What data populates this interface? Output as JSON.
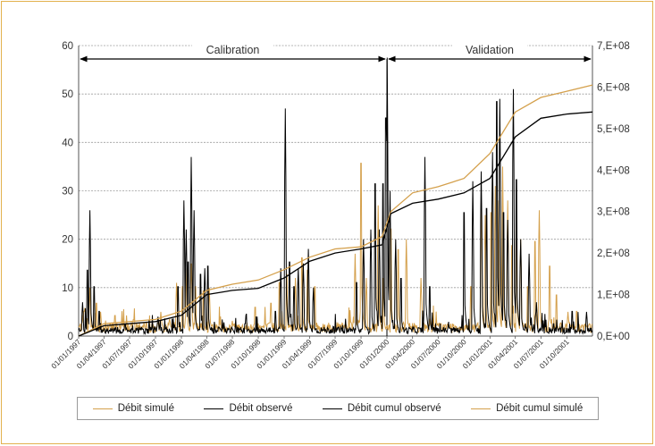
{
  "chart_data": {
    "type": "line",
    "title": "",
    "xlabel": "",
    "ylabel": "",
    "ylim_left": [
      0,
      60
    ],
    "ylim_right": [
      0,
      700000000
    ],
    "yticks_left": [
      "0",
      "10",
      "20",
      "30",
      "40",
      "50",
      "60"
    ],
    "yticks_right": [
      "0,E+00",
      "1,E+08",
      "2,E+08",
      "3,E+08",
      "4,E+08",
      "5,E+08",
      "6,E+08",
      "7,E+08"
    ],
    "x_tick_labels": [
      "01/01/1997",
      "01/04/1997",
      "01/07/1997",
      "01/10/1997",
      "01/01/1998",
      "01/04/1998",
      "01/07/1998",
      "01/10/1998",
      "01/01/1999",
      "01/04/1999",
      "01/07/1999",
      "01/10/1999",
      "01/01/2000",
      "01/04/2000",
      "01/07/2000",
      "01/10/2000",
      "01/01/2001",
      "01/04/2001",
      "01/07/2001",
      "01/10/2001"
    ],
    "x_range": [
      "1997-01-01",
      "2001-12-31"
    ],
    "grid": "horizontal",
    "legend_position": "bottom",
    "periods": [
      {
        "label": "Calibration",
        "start": "1997-01-01",
        "end": "2000-01-01"
      },
      {
        "label": "Validation",
        "start": "2000-01-01",
        "end": "2001-12-31"
      }
    ],
    "series": [
      {
        "name": "Débit simulé",
        "axis": "left",
        "color": "#d4a04c",
        "baseline": 1.5,
        "peaks": [
          [
            "1997-01-20",
            6
          ],
          [
            "1997-02-10",
            10
          ],
          [
            "1997-03-05",
            8
          ],
          [
            "1997-03-20",
            5
          ],
          [
            "1997-05-10",
            5
          ],
          [
            "1997-07-15",
            4
          ],
          [
            "1997-10-20",
            5
          ],
          [
            "1997-11-20",
            4
          ],
          [
            "1997-12-15",
            11
          ],
          [
            "1998-01-05",
            12
          ],
          [
            "1998-01-20",
            14
          ],
          [
            "1998-02-05",
            15
          ],
          [
            "1998-02-20",
            12
          ],
          [
            "1998-03-20",
            11
          ],
          [
            "1998-04-10",
            10
          ],
          [
            "1998-09-20",
            7
          ],
          [
            "1998-11-15",
            8
          ],
          [
            "1998-12-15",
            13
          ],
          [
            "1999-01-10",
            15
          ],
          [
            "1999-02-10",
            12
          ],
          [
            "1999-03-05",
            19
          ],
          [
            "1999-03-25",
            16
          ],
          [
            "1999-04-20",
            12
          ],
          [
            "1999-09-10",
            17
          ],
          [
            "1999-10-01",
            42
          ],
          [
            "1999-10-20",
            12
          ],
          [
            "1999-12-01",
            27
          ],
          [
            "1999-12-20",
            14
          ],
          [
            "2000-01-15",
            26
          ],
          [
            "2000-02-10",
            21
          ],
          [
            "2000-03-10",
            20
          ],
          [
            "2000-05-01",
            12
          ],
          [
            "2000-10-25",
            12
          ],
          [
            "2000-12-01",
            28
          ],
          [
            "2000-12-15",
            25
          ],
          [
            "2001-01-05",
            30
          ],
          [
            "2001-01-20",
            31
          ],
          [
            "2001-02-01",
            28
          ],
          [
            "2001-02-15",
            35
          ],
          [
            "2001-03-05",
            28
          ],
          [
            "2001-03-20",
            22
          ],
          [
            "2001-04-05",
            27
          ],
          [
            "2001-04-20",
            20
          ],
          [
            "2001-05-15",
            12
          ],
          [
            "2001-06-10",
            23
          ],
          [
            "2001-06-25",
            26
          ],
          [
            "2001-08-01",
            17
          ],
          [
            "2001-08-25",
            10
          ],
          [
            "2001-10-05",
            5
          ],
          [
            "2001-11-05",
            6
          ]
        ]
      },
      {
        "name": "Débit observé",
        "axis": "left",
        "color": "#000000",
        "baseline": 1.0,
        "peaks": [
          [
            "1997-01-15",
            7
          ],
          [
            "1997-02-01",
            16
          ],
          [
            "1997-02-10",
            26
          ],
          [
            "1997-02-25",
            12
          ],
          [
            "1997-03-15",
            6
          ],
          [
            "1997-06-15",
            3
          ],
          [
            "1997-10-10",
            4
          ],
          [
            "1997-12-20",
            12
          ],
          [
            "1998-01-10",
            28
          ],
          [
            "1998-01-18",
            22
          ],
          [
            "1998-01-25",
            18
          ],
          [
            "1998-02-05",
            37
          ],
          [
            "1998-02-15",
            26
          ],
          [
            "1998-03-10",
            15
          ],
          [
            "1998-03-25",
            14
          ],
          [
            "1998-04-05",
            17
          ],
          [
            "1998-08-15",
            3
          ],
          [
            "1998-12-01",
            6
          ],
          [
            "1998-12-20",
            14
          ],
          [
            "1999-01-05",
            47
          ],
          [
            "1999-01-20",
            18
          ],
          [
            "1999-02-05",
            12
          ],
          [
            "1999-02-20",
            14
          ],
          [
            "1999-03-10",
            15
          ],
          [
            "1999-03-28",
            18
          ],
          [
            "1999-04-15",
            10
          ],
          [
            "1999-09-15",
            13
          ],
          [
            "1999-10-10",
            20
          ],
          [
            "1999-11-05",
            22
          ],
          [
            "1999-11-20",
            37
          ],
          [
            "1999-12-05",
            22
          ],
          [
            "1999-12-18",
            37
          ],
          [
            "1999-12-28",
            53
          ],
          [
            "2000-01-02",
            57.5
          ],
          [
            "2000-01-12",
            30
          ],
          [
            "2000-02-01",
            20
          ],
          [
            "2000-02-20",
            14
          ],
          [
            "2000-05-15",
            37
          ],
          [
            "2000-06-01",
            12
          ],
          [
            "2000-10-01",
            30
          ],
          [
            "2000-11-01",
            32
          ],
          [
            "2000-12-01",
            34
          ],
          [
            "2000-12-20",
            31
          ],
          [
            "2001-01-10",
            38
          ],
          [
            "2001-01-25",
            57
          ],
          [
            "2001-02-05",
            49
          ],
          [
            "2001-02-18",
            30
          ],
          [
            "2001-03-05",
            24
          ],
          [
            "2001-03-25",
            51
          ],
          [
            "2001-04-05",
            38
          ],
          [
            "2001-04-20",
            20
          ],
          [
            "2001-05-20",
            17
          ],
          [
            "2001-06-15",
            7
          ],
          [
            "2001-08-15",
            3
          ],
          [
            "2001-10-20",
            6
          ],
          [
            "2001-12-10",
            5
          ]
        ]
      },
      {
        "name": "Débit cumul observé",
        "axis": "right",
        "color": "#000000",
        "points": [
          [
            "1997-01-01",
            0
          ],
          [
            "1997-04-01",
            25000000
          ],
          [
            "1997-10-01",
            35000000
          ],
          [
            "1998-01-01",
            50000000
          ],
          [
            "1998-04-01",
            100000000
          ],
          [
            "1998-07-01",
            110000000
          ],
          [
            "1998-10-01",
            115000000
          ],
          [
            "1999-01-01",
            140000000
          ],
          [
            "1999-04-01",
            180000000
          ],
          [
            "1999-07-01",
            200000000
          ],
          [
            "1999-10-01",
            210000000
          ],
          [
            "1999-12-15",
            220000000
          ],
          [
            "2000-01-15",
            295000000
          ],
          [
            "2000-04-01",
            320000000
          ],
          [
            "2000-07-01",
            330000000
          ],
          [
            "2000-10-01",
            345000000
          ],
          [
            "2001-01-01",
            380000000
          ],
          [
            "2001-04-01",
            480000000
          ],
          [
            "2001-07-01",
            525000000
          ],
          [
            "2001-10-01",
            535000000
          ],
          [
            "2001-12-31",
            540000000
          ]
        ]
      },
      {
        "name": "Débit cumul simulé",
        "axis": "right",
        "color": "#d4a04c",
        "points": [
          [
            "1997-01-01",
            0
          ],
          [
            "1997-04-01",
            30000000
          ],
          [
            "1997-10-01",
            40000000
          ],
          [
            "1998-01-01",
            60000000
          ],
          [
            "1998-04-01",
            110000000
          ],
          [
            "1998-07-01",
            125000000
          ],
          [
            "1998-10-01",
            135000000
          ],
          [
            "1999-01-01",
            160000000
          ],
          [
            "1999-04-01",
            190000000
          ],
          [
            "1999-07-01",
            210000000
          ],
          [
            "1999-10-01",
            215000000
          ],
          [
            "1999-12-15",
            240000000
          ],
          [
            "2000-01-15",
            300000000
          ],
          [
            "2000-04-01",
            345000000
          ],
          [
            "2000-07-01",
            360000000
          ],
          [
            "2000-10-01",
            380000000
          ],
          [
            "2001-01-01",
            440000000
          ],
          [
            "2001-04-01",
            540000000
          ],
          [
            "2001-07-01",
            575000000
          ],
          [
            "2001-10-01",
            590000000
          ],
          [
            "2001-12-31",
            605000000
          ]
        ]
      }
    ]
  }
}
